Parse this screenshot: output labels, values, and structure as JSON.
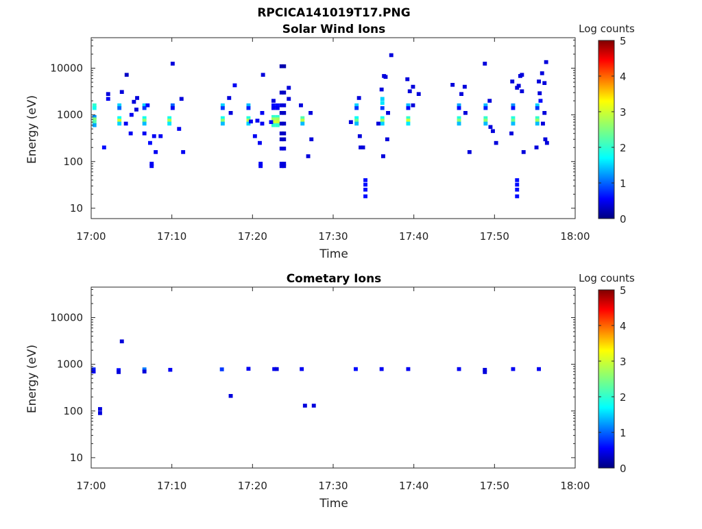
{
  "figure_title": "RPCICA141019T17.PNG",
  "colorbar_ticks": [
    "0",
    "1",
    "2",
    "3",
    "4",
    "5"
  ],
  "chart_data": [
    {
      "type": "heatmap",
      "title": "Solar Wind Ions",
      "xlabel": "Time",
      "ylabel": "Energy (eV)",
      "y_scale": "log",
      "ylim": [
        6,
        45000
      ],
      "xlim": [
        "17:00",
        "18:00"
      ],
      "x_ticks": [
        "17:00",
        "17:10",
        "17:20",
        "17:30",
        "17:40",
        "17:50",
        "18:00"
      ],
      "y_ticks": [
        "10",
        "100",
        "1000",
        "10000"
      ],
      "colorbar": {
        "label": "Log counts",
        "range": [
          0,
          5
        ],
        "colormap": "jet"
      },
      "grid": false,
      "cells": [
        {
          "t": 0.4,
          "e": 1600,
          "v": 2.0
        },
        {
          "t": 0.4,
          "e": 1400,
          "v": 1.8
        },
        {
          "t": 0.4,
          "e": 900,
          "v": 1.2
        },
        {
          "t": 0.4,
          "e": 800,
          "v": 2.5
        },
        {
          "t": 0.4,
          "e": 700,
          "v": 2.2
        },
        {
          "t": 0.4,
          "e": 600,
          "v": 1.3
        },
        {
          "t": 1.6,
          "e": 200,
          "v": 0.6
        },
        {
          "t": 2.1,
          "e": 2800,
          "v": 0.4
        },
        {
          "t": 2.1,
          "e": 2200,
          "v": 0.5
        },
        {
          "t": 3.5,
          "e": 1600,
          "v": 1.5
        },
        {
          "t": 3.5,
          "e": 1400,
          "v": 1.0
        },
        {
          "t": 3.5,
          "e": 850,
          "v": 1.7
        },
        {
          "t": 3.5,
          "e": 750,
          "v": 3.0
        },
        {
          "t": 3.5,
          "e": 650,
          "v": 1.5
        },
        {
          "t": 3.8,
          "e": 3100,
          "v": 0.4
        },
        {
          "t": 4.4,
          "e": 7200,
          "v": 0.3
        },
        {
          "t": 4.3,
          "e": 650,
          "v": 0.5
        },
        {
          "t": 4.9,
          "e": 400,
          "v": 0.5
        },
        {
          "t": 5.0,
          "e": 1000,
          "v": 0.5
        },
        {
          "t": 5.3,
          "e": 1900,
          "v": 0.4
        },
        {
          "t": 5.6,
          "e": 1300,
          "v": 0.4
        },
        {
          "t": 5.7,
          "e": 2300,
          "v": 0.4
        },
        {
          "t": 6.6,
          "e": 1600,
          "v": 1.5
        },
        {
          "t": 6.6,
          "e": 1400,
          "v": 0.8
        },
        {
          "t": 6.6,
          "e": 850,
          "v": 1.8
        },
        {
          "t": 6.6,
          "e": 750,
          "v": 2.6
        },
        {
          "t": 6.6,
          "e": 650,
          "v": 1.4
        },
        {
          "t": 6.6,
          "e": 400,
          "v": 0.5
        },
        {
          "t": 7.0,
          "e": 1600,
          "v": 0.6
        },
        {
          "t": 7.3,
          "e": 250,
          "v": 0.6
        },
        {
          "t": 7.5,
          "e": 90,
          "v": 0.5
        },
        {
          "t": 7.5,
          "e": 80,
          "v": 0.5
        },
        {
          "t": 7.8,
          "e": 350,
          "v": 0.5
        },
        {
          "t": 8.0,
          "e": 160,
          "v": 0.5
        },
        {
          "t": 8.6,
          "e": 350,
          "v": 0.5
        },
        {
          "t": 9.7,
          "e": 850,
          "v": 1.8
        },
        {
          "t": 9.7,
          "e": 750,
          "v": 2.8
        },
        {
          "t": 9.7,
          "e": 650,
          "v": 1.6
        },
        {
          "t": 10.1,
          "e": 1600,
          "v": 1.0
        },
        {
          "t": 10.1,
          "e": 1400,
          "v": 0.5
        },
        {
          "t": 10.1,
          "e": 12500,
          "v": 0.4
        },
        {
          "t": 10.9,
          "e": 500,
          "v": 0.5
        },
        {
          "t": 11.4,
          "e": 160,
          "v": 0.5
        },
        {
          "t": 11.2,
          "e": 2200,
          "v": 0.4
        },
        {
          "t": 16.3,
          "e": 1600,
          "v": 1.5
        },
        {
          "t": 16.3,
          "e": 1400,
          "v": 0.8
        },
        {
          "t": 16.3,
          "e": 850,
          "v": 1.8
        },
        {
          "t": 16.3,
          "e": 750,
          "v": 2.6
        },
        {
          "t": 16.3,
          "e": 650,
          "v": 1.4
        },
        {
          "t": 17.1,
          "e": 2300,
          "v": 0.4
        },
        {
          "t": 17.3,
          "e": 1100,
          "v": 0.4
        },
        {
          "t": 17.8,
          "e": 4300,
          "v": 0.5
        },
        {
          "t": 19.5,
          "e": 1600,
          "v": 1.4
        },
        {
          "t": 19.5,
          "e": 1400,
          "v": 0.7
        },
        {
          "t": 19.5,
          "e": 850,
          "v": 1.9
        },
        {
          "t": 19.5,
          "e": 750,
          "v": 2.9
        },
        {
          "t": 19.5,
          "e": 650,
          "v": 1.5
        },
        {
          "t": 19.8,
          "e": 720,
          "v": 0.5
        },
        {
          "t": 20.3,
          "e": 350,
          "v": 0.5
        },
        {
          "t": 20.6,
          "e": 750,
          "v": 0.5
        },
        {
          "t": 20.9,
          "e": 250,
          "v": 0.5
        },
        {
          "t": 21.0,
          "e": 90,
          "v": 0.5
        },
        {
          "t": 21.0,
          "e": 80,
          "v": 0.5
        },
        {
          "t": 21.2,
          "e": 1100,
          "v": 0.5
        },
        {
          "t": 21.2,
          "e": 650,
          "v": 0.5
        },
        {
          "t": 21.3,
          "e": 7200,
          "v": 0.4
        },
        {
          "t": 22.6,
          "e": 1600,
          "v": 0.6
        },
        {
          "t": 22.6,
          "e": 1400,
          "v": 0.5
        },
        {
          "t": 22.6,
          "e": 900,
          "v": 2.0
        },
        {
          "t": 22.6,
          "e": 800,
          "v": 2.7
        },
        {
          "t": 22.6,
          "e": 700,
          "v": 3.0
        },
        {
          "t": 22.6,
          "e": 600,
          "v": 2.0
        },
        {
          "t": 23.1,
          "e": 1600,
          "v": 0.6
        },
        {
          "t": 23.1,
          "e": 1400,
          "v": 0.5
        },
        {
          "t": 23.1,
          "e": 900,
          "v": 2.0
        },
        {
          "t": 23.1,
          "e": 800,
          "v": 2.7
        },
        {
          "t": 23.1,
          "e": 700,
          "v": 3.0
        },
        {
          "t": 23.1,
          "e": 600,
          "v": 2.0
        },
        {
          "t": 22.6,
          "e": 2000,
          "v": 0.4
        },
        {
          "t": 22.3,
          "e": 700,
          "v": 0.6
        },
        {
          "t": 23.6,
          "e": 11000,
          "v": 0.2
        },
        {
          "t": 23.9,
          "e": 11000,
          "v": 0.2
        },
        {
          "t": 23.6,
          "e": 3000,
          "v": 0.3
        },
        {
          "t": 23.9,
          "e": 3000,
          "v": 0.3
        },
        {
          "t": 23.6,
          "e": 1600,
          "v": 0.4
        },
        {
          "t": 23.9,
          "e": 1600,
          "v": 0.4
        },
        {
          "t": 23.6,
          "e": 1100,
          "v": 0.3
        },
        {
          "t": 23.9,
          "e": 1100,
          "v": 0.3
        },
        {
          "t": 23.6,
          "e": 650,
          "v": 0.3
        },
        {
          "t": 23.9,
          "e": 650,
          "v": 0.3
        },
        {
          "t": 23.6,
          "e": 400,
          "v": 0.3
        },
        {
          "t": 23.9,
          "e": 400,
          "v": 0.3
        },
        {
          "t": 23.6,
          "e": 300,
          "v": 0.3
        },
        {
          "t": 23.9,
          "e": 300,
          "v": 0.3
        },
        {
          "t": 23.6,
          "e": 190,
          "v": 0.4
        },
        {
          "t": 23.9,
          "e": 190,
          "v": 0.4
        },
        {
          "t": 23.6,
          "e": 90,
          "v": 0.4
        },
        {
          "t": 23.9,
          "e": 90,
          "v": 0.4
        },
        {
          "t": 23.6,
          "e": 80,
          "v": 0.4
        },
        {
          "t": 23.9,
          "e": 80,
          "v": 0.4
        },
        {
          "t": 24.5,
          "e": 3800,
          "v": 0.4
        },
        {
          "t": 24.5,
          "e": 2200,
          "v": 0.4
        },
        {
          "t": 26.2,
          "e": 850,
          "v": 2.2
        },
        {
          "t": 26.2,
          "e": 750,
          "v": 2.9
        },
        {
          "t": 26.2,
          "e": 650,
          "v": 1.4
        },
        {
          "t": 26.0,
          "e": 1600,
          "v": 0.4
        },
        {
          "t": 27.2,
          "e": 1100,
          "v": 0.4
        },
        {
          "t": 27.3,
          "e": 300,
          "v": 0.4
        },
        {
          "t": 26.9,
          "e": 130,
          "v": 0.4
        },
        {
          "t": 32.9,
          "e": 1600,
          "v": 1.5
        },
        {
          "t": 32.9,
          "e": 1400,
          "v": 0.8
        },
        {
          "t": 32.9,
          "e": 850,
          "v": 1.7
        },
        {
          "t": 32.9,
          "e": 750,
          "v": 2.4
        },
        {
          "t": 32.9,
          "e": 650,
          "v": 1.4
        },
        {
          "t": 32.2,
          "e": 700,
          "v": 0.4
        },
        {
          "t": 33.2,
          "e": 2300,
          "v": 0.4
        },
        {
          "t": 33.3,
          "e": 350,
          "v": 0.4
        },
        {
          "t": 33.4,
          "e": 200,
          "v": 0.4
        },
        {
          "t": 33.7,
          "e": 200,
          "v": 0.4
        },
        {
          "t": 34.0,
          "e": 40,
          "v": 0.6
        },
        {
          "t": 34.0,
          "e": 32,
          "v": 0.6
        },
        {
          "t": 34.0,
          "e": 25,
          "v": 0.6
        },
        {
          "t": 34.0,
          "e": 18,
          "v": 0.6
        },
        {
          "t": 36.1,
          "e": 2200,
          "v": 1.5
        },
        {
          "t": 36.1,
          "e": 1800,
          "v": 1.6
        },
        {
          "t": 36.1,
          "e": 1400,
          "v": 0.8
        },
        {
          "t": 36.1,
          "e": 850,
          "v": 1.8
        },
        {
          "t": 36.1,
          "e": 750,
          "v": 2.7
        },
        {
          "t": 36.1,
          "e": 650,
          "v": 1.5
        },
        {
          "t": 35.6,
          "e": 650,
          "v": 0.4
        },
        {
          "t": 36.0,
          "e": 3500,
          "v": 0.4
        },
        {
          "t": 36.3,
          "e": 6800,
          "v": 0.4
        },
        {
          "t": 36.5,
          "e": 6500,
          "v": 0.4
        },
        {
          "t": 36.8,
          "e": 1100,
          "v": 0.4
        },
        {
          "t": 37.2,
          "e": 19000,
          "v": 0.4
        },
        {
          "t": 36.7,
          "e": 300,
          "v": 0.4
        },
        {
          "t": 36.2,
          "e": 130,
          "v": 0.4
        },
        {
          "t": 39.3,
          "e": 1600,
          "v": 1.4
        },
        {
          "t": 39.3,
          "e": 1400,
          "v": 0.6
        },
        {
          "t": 39.3,
          "e": 850,
          "v": 2.0
        },
        {
          "t": 39.3,
          "e": 750,
          "v": 3.0
        },
        {
          "t": 39.3,
          "e": 650,
          "v": 1.6
        },
        {
          "t": 39.2,
          "e": 5800,
          "v": 0.4
        },
        {
          "t": 39.5,
          "e": 3200,
          "v": 0.4
        },
        {
          "t": 39.9,
          "e": 4000,
          "v": 0.4
        },
        {
          "t": 39.9,
          "e": 1600,
          "v": 0.4
        },
        {
          "t": 40.6,
          "e": 2800,
          "v": 0.4
        },
        {
          "t": 45.6,
          "e": 1600,
          "v": 1.3
        },
        {
          "t": 45.6,
          "e": 1400,
          "v": 0.6
        },
        {
          "t": 45.6,
          "e": 850,
          "v": 1.9
        },
        {
          "t": 45.6,
          "e": 750,
          "v": 2.6
        },
        {
          "t": 45.6,
          "e": 650,
          "v": 1.4
        },
        {
          "t": 44.8,
          "e": 4400,
          "v": 0.4
        },
        {
          "t": 45.9,
          "e": 2800,
          "v": 0.4
        },
        {
          "t": 46.3,
          "e": 4000,
          "v": 0.4
        },
        {
          "t": 46.4,
          "e": 1100,
          "v": 0.4
        },
        {
          "t": 46.9,
          "e": 160,
          "v": 0.4
        },
        {
          "t": 48.8,
          "e": 12500,
          "v": 0.4
        },
        {
          "t": 48.9,
          "e": 1600,
          "v": 1.4
        },
        {
          "t": 48.9,
          "e": 1400,
          "v": 0.7
        },
        {
          "t": 48.9,
          "e": 850,
          "v": 2.0
        },
        {
          "t": 48.9,
          "e": 750,
          "v": 2.6
        },
        {
          "t": 48.9,
          "e": 650,
          "v": 1.4
        },
        {
          "t": 49.4,
          "e": 2000,
          "v": 0.4
        },
        {
          "t": 49.5,
          "e": 550,
          "v": 0.4
        },
        {
          "t": 49.8,
          "e": 450,
          "v": 0.4
        },
        {
          "t": 50.2,
          "e": 250,
          "v": 0.4
        },
        {
          "t": 52.3,
          "e": 1600,
          "v": 1.2
        },
        {
          "t": 52.3,
          "e": 1400,
          "v": 0.6
        },
        {
          "t": 52.3,
          "e": 850,
          "v": 1.9
        },
        {
          "t": 52.3,
          "e": 750,
          "v": 2.4
        },
        {
          "t": 52.3,
          "e": 650,
          "v": 1.4
        },
        {
          "t": 52.2,
          "e": 5200,
          "v": 0.4
        },
        {
          "t": 52.1,
          "e": 400,
          "v": 0.4
        },
        {
          "t": 52.8,
          "e": 3800,
          "v": 0.4
        },
        {
          "t": 53.0,
          "e": 4200,
          "v": 0.4
        },
        {
          "t": 53.2,
          "e": 6800,
          "v": 0.4
        },
        {
          "t": 53.4,
          "e": 7200,
          "v": 0.4
        },
        {
          "t": 53.4,
          "e": 3200,
          "v": 0.4
        },
        {
          "t": 53.6,
          "e": 160,
          "v": 0.4
        },
        {
          "t": 52.8,
          "e": 40,
          "v": 0.6
        },
        {
          "t": 52.8,
          "e": 32,
          "v": 0.6
        },
        {
          "t": 52.8,
          "e": 25,
          "v": 0.6
        },
        {
          "t": 52.8,
          "e": 18,
          "v": 0.6
        },
        {
          "t": 55.3,
          "e": 1600,
          "v": 1.5
        },
        {
          "t": 55.3,
          "e": 1400,
          "v": 0.8
        },
        {
          "t": 55.3,
          "e": 850,
          "v": 2.0
        },
        {
          "t": 55.3,
          "e": 750,
          "v": 2.7
        },
        {
          "t": 55.3,
          "e": 650,
          "v": 1.4
        },
        {
          "t": 55.7,
          "e": 2000,
          "v": 0.6
        },
        {
          "t": 55.9,
          "e": 7800,
          "v": 0.4
        },
        {
          "t": 55.5,
          "e": 5200,
          "v": 0.4
        },
        {
          "t": 55.6,
          "e": 2900,
          "v": 0.4
        },
        {
          "t": 55.2,
          "e": 200,
          "v": 0.4
        },
        {
          "t": 56.2,
          "e": 4800,
          "v": 0.4
        },
        {
          "t": 56.4,
          "e": 13500,
          "v": 0.4
        },
        {
          "t": 56.2,
          "e": 1100,
          "v": 0.4
        },
        {
          "t": 56.3,
          "e": 300,
          "v": 0.4
        },
        {
          "t": 56.5,
          "e": 250,
          "v": 0.4
        },
        {
          "t": 56.0,
          "e": 650,
          "v": 0.4
        }
      ]
    },
    {
      "type": "heatmap",
      "title": "Cometary Ions",
      "xlabel": "Time",
      "ylabel": "Energy (eV)",
      "y_scale": "log",
      "ylim": [
        6,
        45000
      ],
      "xlim": [
        "17:00",
        "18:00"
      ],
      "x_ticks": [
        "17:00",
        "17:10",
        "17:20",
        "17:30",
        "17:40",
        "17:50",
        "18:00"
      ],
      "y_ticks": [
        "10",
        "100",
        "1000",
        "10000"
      ],
      "colorbar": {
        "label": "Log counts",
        "range": [
          0,
          5
        ],
        "colormap": "jet"
      },
      "grid": false,
      "cells": [
        {
          "t": 0.3,
          "e": 780,
          "v": 0.7
        },
        {
          "t": 0.3,
          "e": 700,
          "v": 0.5
        },
        {
          "t": 1.1,
          "e": 110,
          "v": 0.4
        },
        {
          "t": 1.1,
          "e": 90,
          "v": 0.4
        },
        {
          "t": 3.4,
          "e": 750,
          "v": 0.6
        },
        {
          "t": 3.4,
          "e": 680,
          "v": 0.4
        },
        {
          "t": 3.8,
          "e": 3100,
          "v": 0.4
        },
        {
          "t": 6.6,
          "e": 780,
          "v": 1.1
        },
        {
          "t": 6.6,
          "e": 700,
          "v": 0.4
        },
        {
          "t": 9.8,
          "e": 760,
          "v": 0.5
        },
        {
          "t": 16.2,
          "e": 780,
          "v": 0.8
        },
        {
          "t": 17.3,
          "e": 210,
          "v": 0.4
        },
        {
          "t": 19.5,
          "e": 800,
          "v": 0.5
        },
        {
          "t": 22.7,
          "e": 790,
          "v": 0.5
        },
        {
          "t": 23.0,
          "e": 790,
          "v": 0.4
        },
        {
          "t": 26.1,
          "e": 790,
          "v": 0.5
        },
        {
          "t": 26.5,
          "e": 130,
          "v": 0.4
        },
        {
          "t": 27.6,
          "e": 130,
          "v": 0.4
        },
        {
          "t": 32.8,
          "e": 790,
          "v": 0.6
        },
        {
          "t": 36.0,
          "e": 790,
          "v": 0.5
        },
        {
          "t": 39.3,
          "e": 790,
          "v": 0.5
        },
        {
          "t": 45.6,
          "e": 790,
          "v": 0.5
        },
        {
          "t": 48.8,
          "e": 760,
          "v": 0.4
        },
        {
          "t": 48.8,
          "e": 680,
          "v": 0.4
        },
        {
          "t": 52.3,
          "e": 790,
          "v": 0.5
        },
        {
          "t": 55.5,
          "e": 790,
          "v": 0.5
        }
      ]
    }
  ]
}
